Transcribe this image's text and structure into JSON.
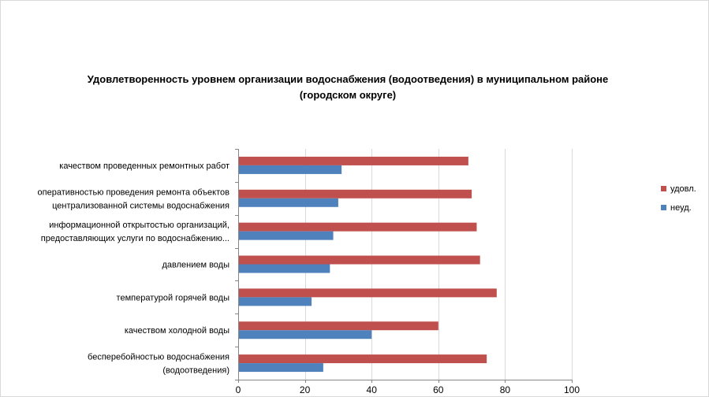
{
  "chart_data": {
    "type": "bar",
    "orientation": "horizontal",
    "title_lines": [
      "Удовлетворенность уровнем организации водоснабжения (водоотведения) в муниципальном районе",
      "(городском округе)"
    ],
    "categories": [
      [
        "качеством  проведенных  ремонтных работ"
      ],
      [
        "оперативностью  проведения  ремонта объектов",
        "централизованной системы водоснабжения"
      ],
      [
        "информационной открытостью организаций,",
        "предоставляющих услуги по водоснабжению..."
      ],
      [
        "давлением  воды"
      ],
      [
        "температурой  горячей  воды"
      ],
      [
        "качеством  холодной воды"
      ],
      [
        "бесперебойностью  водоснабжения",
        "(водоотведения)"
      ]
    ],
    "series": [
      {
        "name": "удовл.",
        "color": "#c0504d",
        "values": [
          69,
          70,
          71.5,
          72.5,
          77.5,
          60,
          74.5
        ]
      },
      {
        "name": "неуд.",
        "color": "#4f81bd",
        "values": [
          31,
          30,
          28.5,
          27.5,
          22,
          40,
          25.5
        ]
      }
    ],
    "xlim": [
      0,
      100
    ],
    "xticks": [
      0,
      20,
      40,
      60,
      80,
      100
    ],
    "grid": true,
    "legend": "right"
  }
}
